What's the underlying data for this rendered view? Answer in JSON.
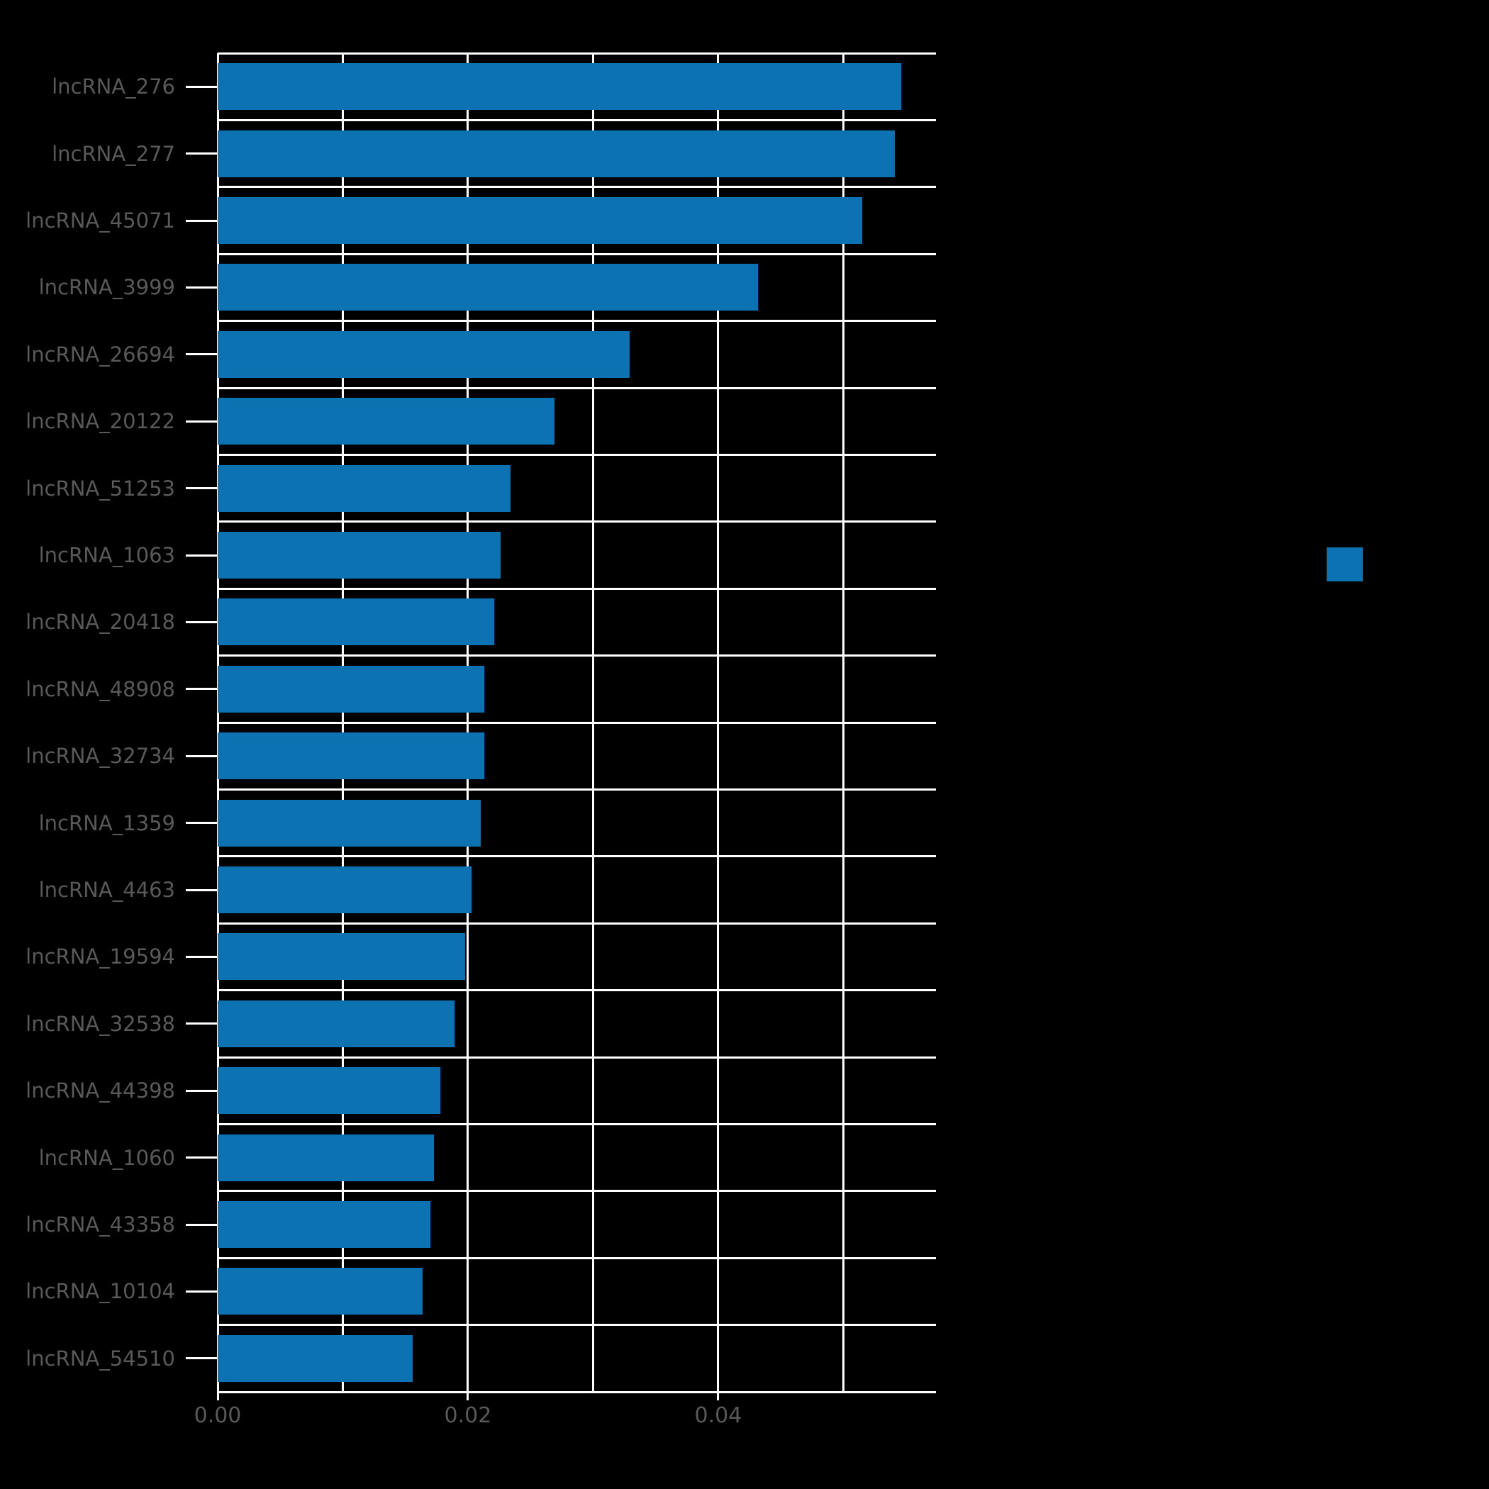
{
  "page": {
    "background_color": "#000000",
    "text_color": "#595959"
  },
  "legend": {
    "swatch_color": "#0d72b2"
  },
  "chart_data": {
    "type": "bar",
    "orientation": "horizontal",
    "title": "",
    "xlabel": "",
    "ylabel": "",
    "categories": [
      "lncRNA_276",
      "lncRNA_277",
      "lncRNA_45071",
      "lncRNA_3999",
      "lncRNA_26694",
      "lncRNA_20122",
      "lncRNA_51253",
      "lncRNA_1063",
      "lncRNA_20418",
      "lncRNA_48908",
      "lncRNA_32734",
      "lncRNA_1359",
      "lncRNA_4463",
      "lncRNA_19594",
      "lncRNA_32538",
      "lncRNA_44398",
      "lncRNA_1060",
      "lncRNA_43358",
      "lncRNA_10104",
      "lncRNA_54510"
    ],
    "values": [
      0.0546,
      0.0541,
      0.0515,
      0.0432,
      0.0329,
      0.0269,
      0.0234,
      0.0226,
      0.0221,
      0.0213,
      0.0213,
      0.021,
      0.0203,
      0.0198,
      0.0189,
      0.0178,
      0.0173,
      0.017,
      0.0164,
      0.0156
    ],
    "series_color": "#0d72b2",
    "xlim": [
      0,
      0.0574
    ],
    "x_gridlines": [
      0,
      0.01,
      0.02,
      0.03,
      0.04,
      0.05
    ],
    "xtick_labels": [
      {
        "value": 0.0,
        "label": "0.00"
      },
      {
        "value": 0.02,
        "label": "0.02"
      },
      {
        "value": 0.04,
        "label": "0.04"
      }
    ],
    "grid": true,
    "grid_color": "#ffffff",
    "label_color": "#595959",
    "legend_position": "right"
  }
}
